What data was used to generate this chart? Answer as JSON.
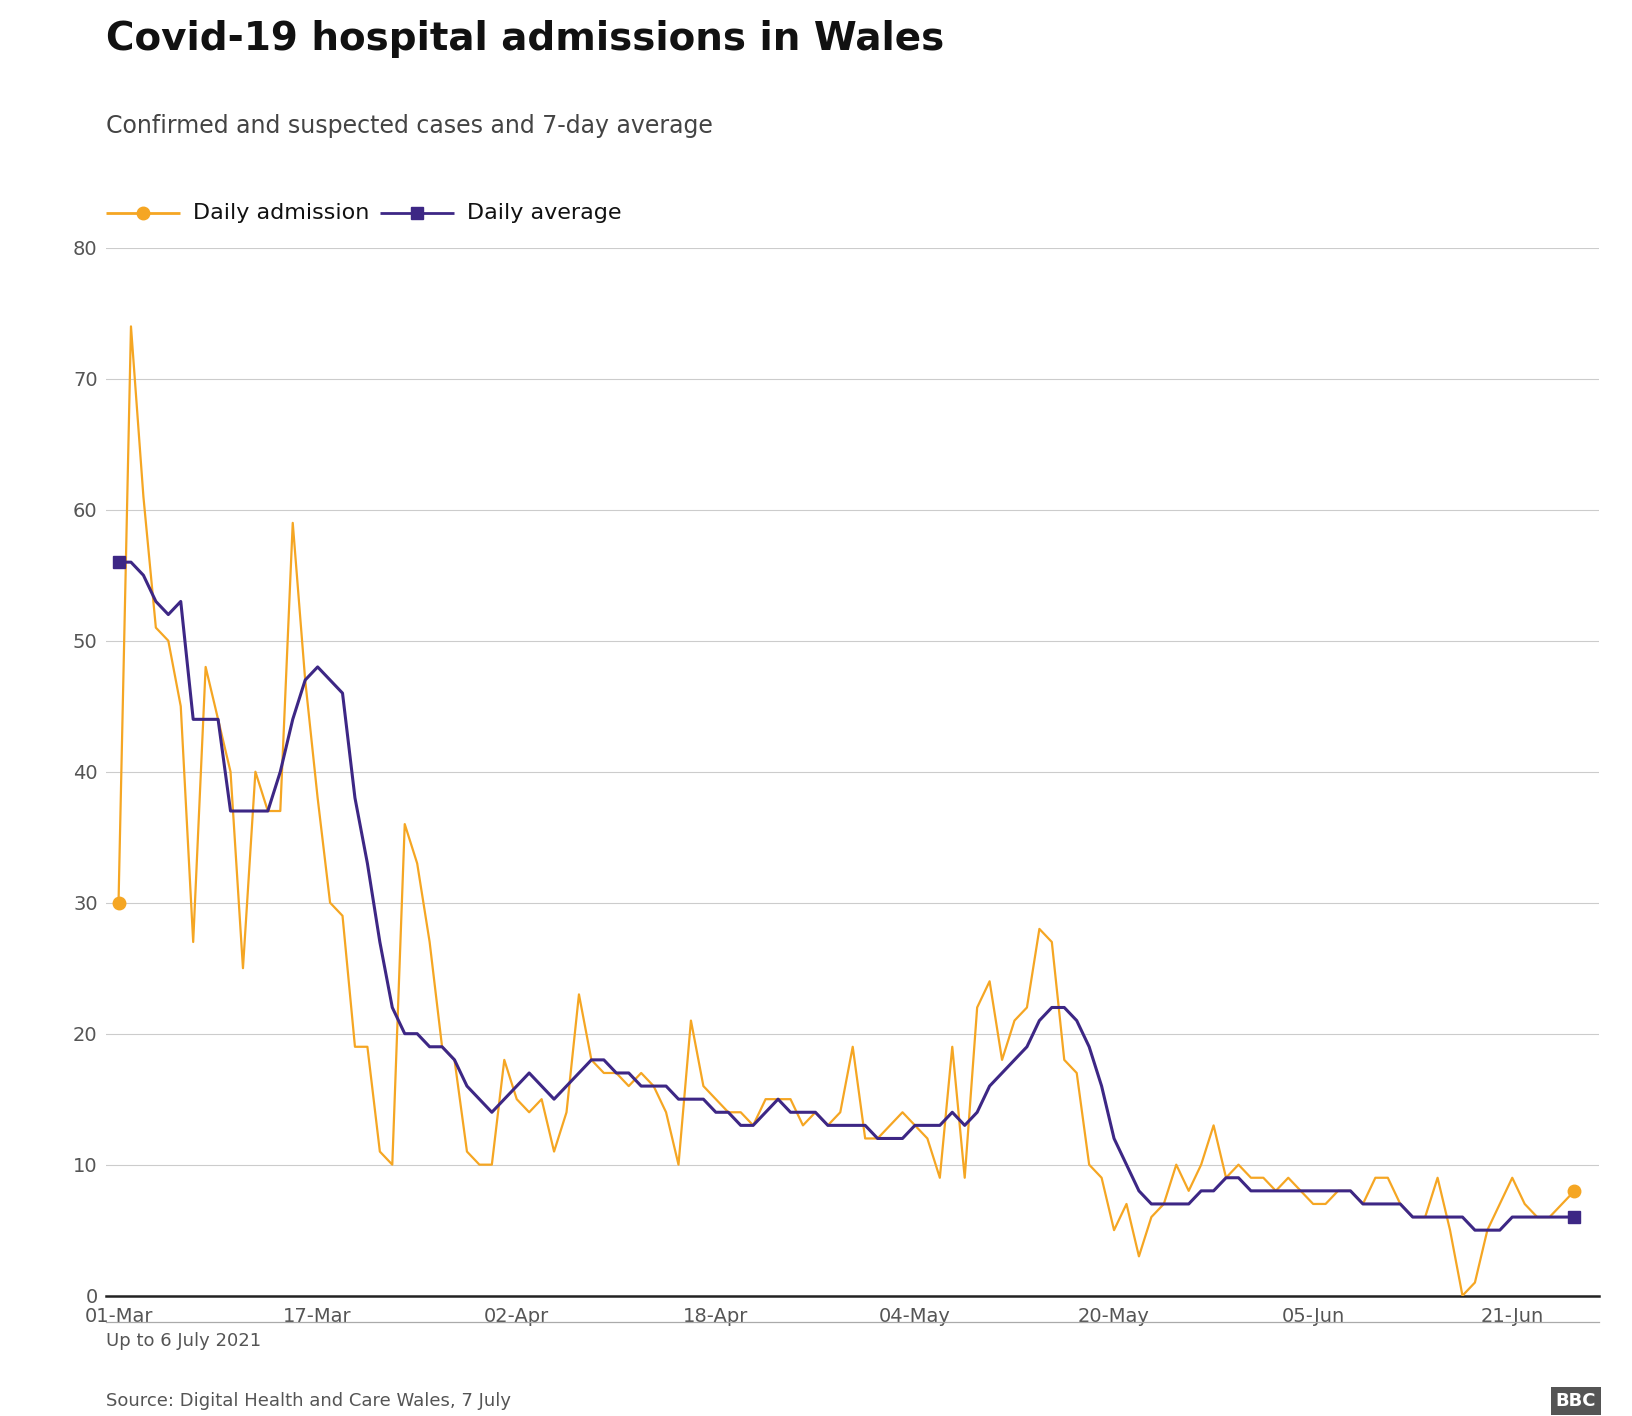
{
  "title": "Covid-19 hospital admissions in Wales",
  "subtitle": "Confirmed and suspected cases and 7-day average",
  "caption": "Up to 6 July 2021",
  "source": "Source: Digital Health and Care Wales, 7 July",
  "bbc_logo": "BBC",
  "legend": {
    "daily_admission": "Daily admission",
    "daily_average": "Daily average"
  },
  "daily_color": "#F5A623",
  "average_color": "#3D2785",
  "ylim": [
    0,
    80
  ],
  "yticks": [
    0,
    10,
    20,
    30,
    40,
    50,
    60,
    70,
    80
  ],
  "start_date": "2021-03-01",
  "daily_admissions": [
    30,
    74,
    61,
    51,
    50,
    45,
    27,
    48,
    44,
    40,
    25,
    40,
    37,
    37,
    59,
    47,
    38,
    30,
    29,
    19,
    19,
    11,
    10,
    36,
    33,
    27,
    19,
    18,
    11,
    10,
    10,
    18,
    15,
    14,
    15,
    11,
    14,
    23,
    18,
    17,
    17,
    16,
    17,
    16,
    14,
    10,
    21,
    16,
    15,
    14,
    14,
    13,
    15,
    15,
    15,
    13,
    14,
    13,
    14,
    19,
    12,
    12,
    13,
    14,
    13,
    12,
    9,
    19,
    9,
    22,
    24,
    18,
    21,
    22,
    28,
    27,
    18,
    17,
    10,
    9,
    5,
    7,
    3,
    6,
    7,
    10,
    8,
    10,
    13,
    9,
    10,
    9,
    9,
    8,
    9,
    8,
    7,
    7,
    8,
    8,
    7,
    9,
    9,
    7,
    6,
    6,
    9,
    5,
    0,
    1,
    5,
    7,
    9,
    7,
    6,
    6,
    7,
    8
  ],
  "daily_avg": [
    56,
    56,
    55,
    53,
    52,
    53,
    44,
    44,
    44,
    37,
    37,
    37,
    37,
    40,
    44,
    47,
    48,
    47,
    46,
    38,
    33,
    27,
    22,
    20,
    20,
    19,
    19,
    18,
    16,
    15,
    14,
    15,
    16,
    17,
    16,
    15,
    16,
    17,
    18,
    18,
    17,
    17,
    16,
    16,
    16,
    15,
    15,
    15,
    14,
    14,
    13,
    13,
    14,
    15,
    14,
    14,
    14,
    13,
    13,
    13,
    13,
    12,
    12,
    12,
    13,
    13,
    13,
    14,
    13,
    14,
    16,
    17,
    18,
    19,
    21,
    22,
    22,
    21,
    19,
    16,
    12,
    10,
    8,
    7,
    7,
    7,
    7,
    8,
    8,
    9,
    9,
    8,
    8,
    8,
    8,
    8,
    8,
    8,
    8,
    8,
    7,
    7,
    7,
    7,
    6,
    6,
    6,
    6,
    6,
    5,
    5,
    5,
    6,
    6,
    6,
    6,
    6,
    6
  ],
  "xtick_dates": [
    "2021-03-01",
    "2021-03-17",
    "2021-04-02",
    "2021-04-18",
    "2021-05-04",
    "2021-05-20",
    "2021-06-05",
    "2021-06-21"
  ],
  "xtick_labels": [
    "01-Mar",
    "17-Mar",
    "02-Apr",
    "18-Apr",
    "04-May",
    "20-May",
    "05-Jun",
    "21-Jun"
  ],
  "title_fontsize": 28,
  "subtitle_fontsize": 17,
  "legend_fontsize": 16,
  "tick_fontsize": 14,
  "footer_fontsize": 13,
  "background_color": "#ffffff",
  "grid_color": "#cccccc",
  "spine_color": "#222222",
  "text_color": "#555555",
  "text_dark": "#111111"
}
